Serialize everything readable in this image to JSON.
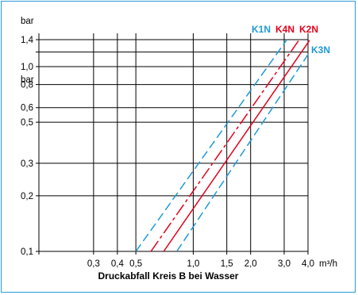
{
  "chart_data": {
    "type": "line",
    "xlabel": "Druckabfall Kreis B bei Wasser",
    "ylabel": "",
    "x_unit": "m³/h",
    "y_unit": "bar",
    "x_scale": "log",
    "y_scale": "log",
    "xlim": [
      0.155,
      4.0
    ],
    "ylim": [
      0.1,
      1.4
    ],
    "x_ticks": [
      {
        "value": 0.3,
        "label": "0,3"
      },
      {
        "value": 0.4,
        "label": "0,4"
      },
      {
        "value": 0.5,
        "label": "0,5"
      },
      {
        "value": 1.0,
        "label": "1,0"
      },
      {
        "value": 1.5,
        "label": "1,5"
      },
      {
        "value": 2.0,
        "label": "2,0"
      },
      {
        "value": 3.0,
        "label": "3,0"
      },
      {
        "value": 4.0,
        "label": "4,0"
      }
    ],
    "y_ticks": [
      {
        "value": 0.1,
        "label": "0,1"
      },
      {
        "value": 0.2,
        "label": "0,2"
      },
      {
        "value": 0.3,
        "label": "0,3"
      },
      {
        "value": 0.5,
        "label": "0,5"
      },
      {
        "value": 0.6,
        "label": "0,6"
      },
      {
        "value": 0.8,
        "label": "0,8"
      },
      {
        "value": 1.0,
        "label": "1,0"
      },
      {
        "value": 1.4,
        "label": "1,4"
      }
    ],
    "x_gridlines": [
      0.3,
      0.4,
      0.5,
      1.0,
      1.5,
      2.0,
      3.0,
      4.0
    ],
    "y_gridlines": [
      0.1,
      0.2,
      0.3,
      0.5,
      0.6,
      0.8,
      1.0,
      1.2,
      1.4
    ],
    "grid": true,
    "series": [
      {
        "name": "K1N",
        "color": "#1e9ad6",
        "dash": "dashed",
        "x": [
          0.5,
          3.1
        ],
        "y": [
          0.1,
          1.4
        ]
      },
      {
        "name": "K4N",
        "color": "#e3001b",
        "dash": "dashdot",
        "x": [
          0.6,
          3.6
        ],
        "y": [
          0.1,
          1.4
        ]
      },
      {
        "name": "K2N",
        "color": "#e3001b",
        "dash": "solid",
        "x": [
          0.7,
          4.1
        ],
        "y": [
          0.1,
          1.4
        ]
      },
      {
        "name": "K3N",
        "color": "#1e9ad6",
        "dash": "dashed",
        "x": [
          0.82,
          4.3
        ],
        "y": [
          0.1,
          1.3
        ]
      }
    ]
  }
}
